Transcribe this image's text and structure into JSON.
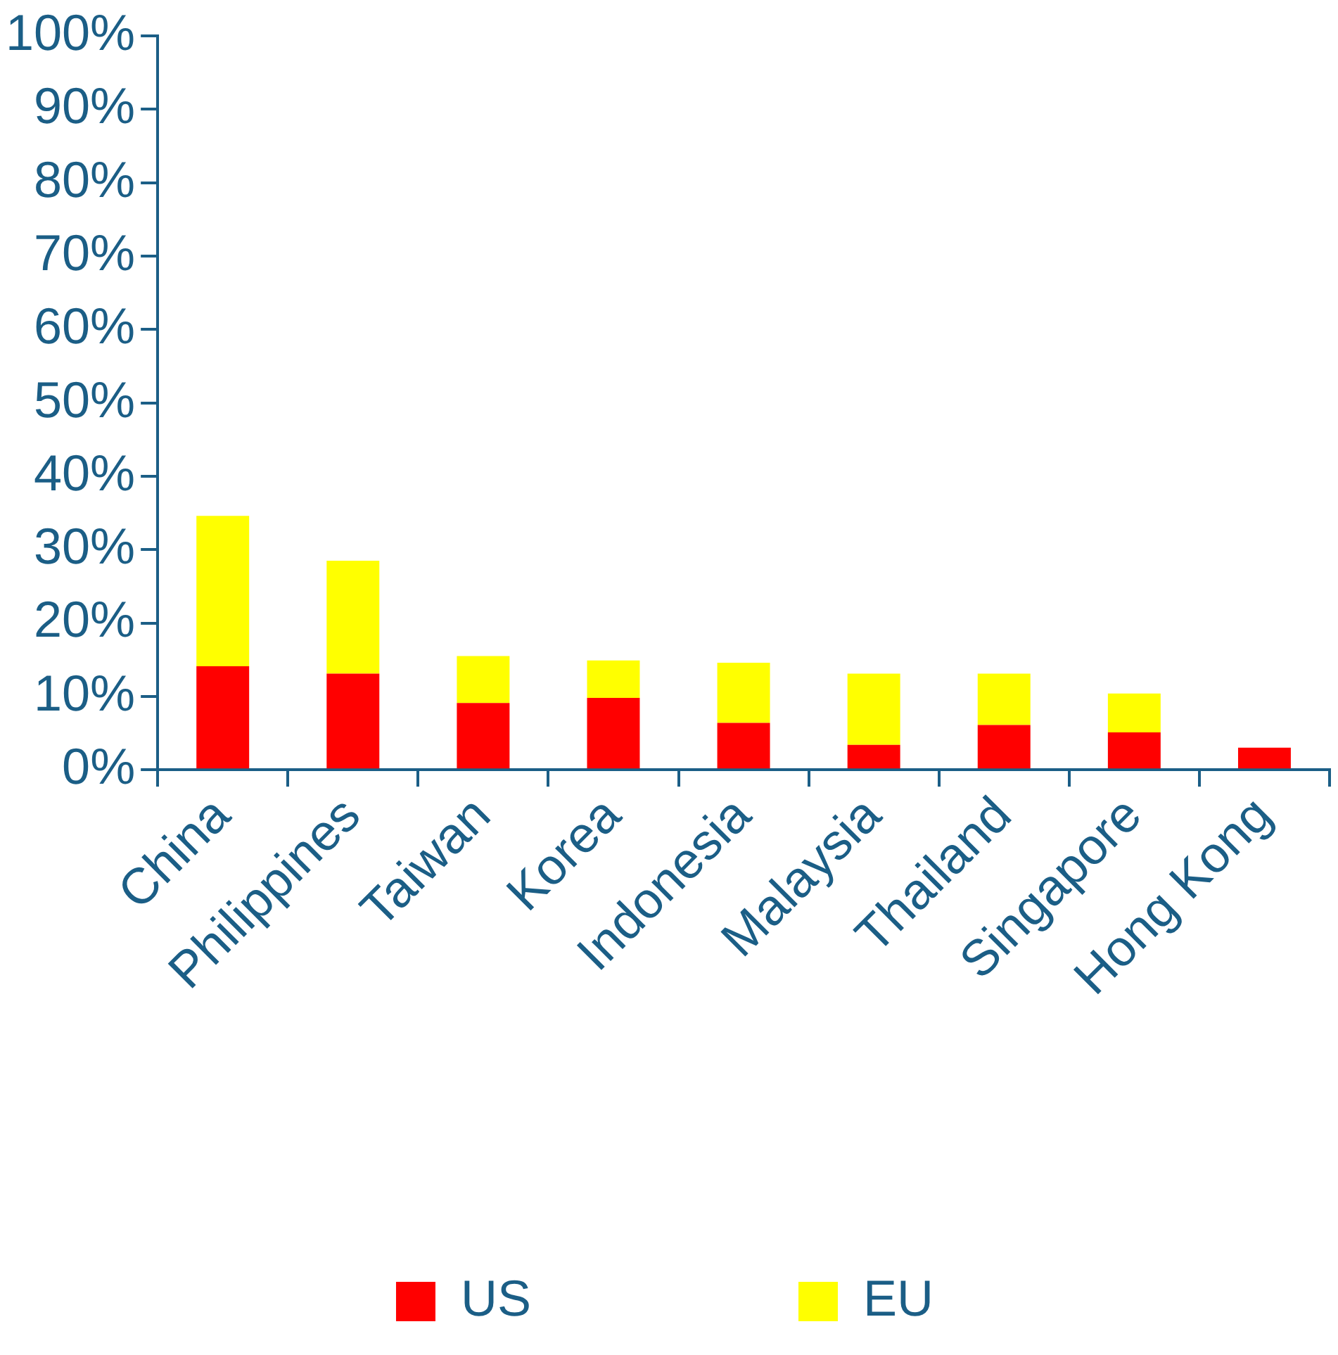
{
  "chart_data": {
    "type": "bar",
    "stacked": true,
    "categories": [
      "China",
      "Philippines",
      "Taiwan",
      "Korea",
      "Indonesia",
      "Malaysia",
      "Thailand",
      "Singapore",
      "Hong Kong"
    ],
    "series": [
      {
        "name": "US",
        "color": "#ff0000",
        "values": [
          14.1,
          13.1,
          9.1,
          9.8,
          6.4,
          3.4,
          6.1,
          5.1,
          3.0
        ]
      },
      {
        "name": "EU",
        "color": "#ffff00",
        "values": [
          20.5,
          15.4,
          6.4,
          5.1,
          8.2,
          9.7,
          7.0,
          5.3,
          null
        ]
      }
    ],
    "ylim": [
      0,
      100
    ],
    "yticks": [
      {
        "value": 0,
        "label": "0%"
      },
      {
        "value": 10,
        "label": "10%"
      },
      {
        "value": 20,
        "label": "20%"
      },
      {
        "value": 30,
        "label": "30%"
      },
      {
        "value": 40,
        "label": "40%"
      },
      {
        "value": 50,
        "label": "50%"
      },
      {
        "value": 60,
        "label": "60%"
      },
      {
        "value": 70,
        "label": "70%"
      },
      {
        "value": 80,
        "label": "80%"
      },
      {
        "value": 90,
        "label": "90%"
      },
      {
        "value": 100,
        "label": "100%"
      }
    ],
    "grid": false,
    "legend": "bottom"
  }
}
